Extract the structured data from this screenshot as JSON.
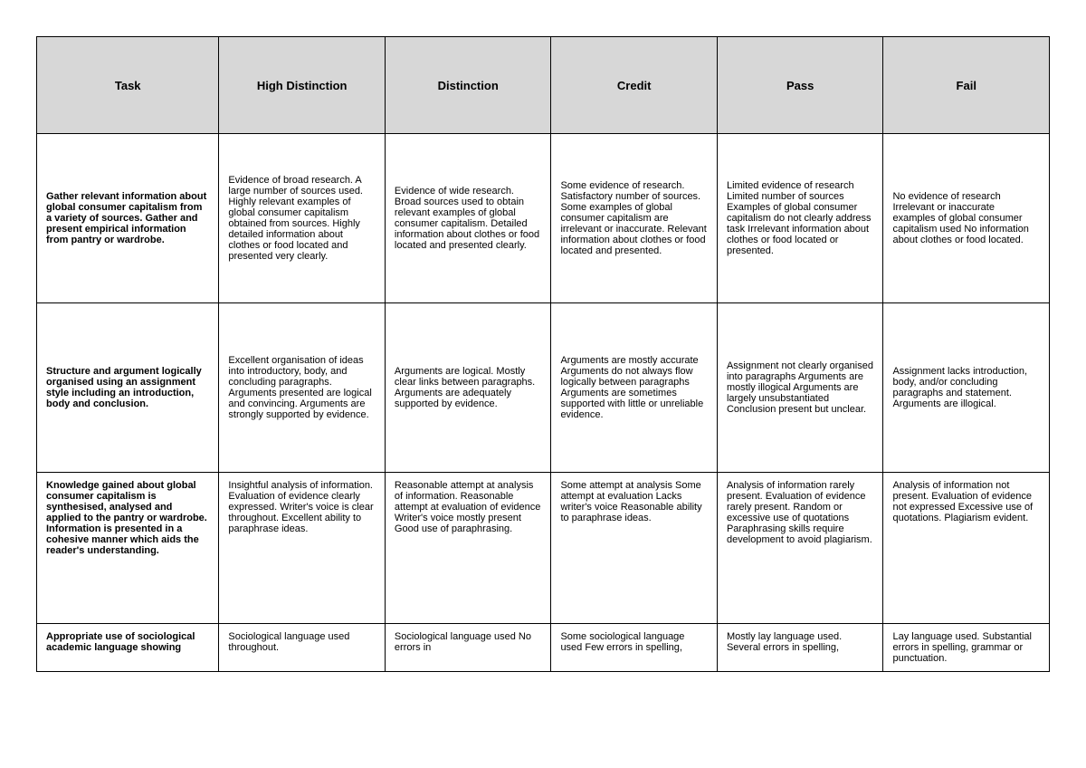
{
  "rubric": {
    "columns": [
      "Task",
      "High Distinction",
      "Distinction",
      "Credit",
      "Pass",
      "Fail"
    ],
    "rows": [
      {
        "task": "Gather relevant information about global consumer capitalism from a variety of sources. Gather and present empirical information from pantry or wardrobe.",
        "cells": [
          "Evidence of broad research. A large number of sources used. Highly relevant examples of global consumer capitalism obtained from sources. Highly detailed information about clothes or food located and presented very clearly.",
          "Evidence of wide research.\nBroad sources used to obtain\nrelevant examples of global consumer capitalism.\nDetailed information about clothes or food located and presented clearly.",
          "Some evidence of research. Satisfactory number of sources. Some examples of global consumer capitalism are irrelevant or inaccurate. Relevant information about clothes or food located and presented.",
          "Limited evidence of research Limited number of sources Examples of global consumer capitalism do not clearly address task Irrelevant information about clothes or food located or presented.",
          "No evidence of research\nIrrelevant or inaccurate examples of global consumer capitalism used\nNo information about clothes or food located."
        ]
      },
      {
        "task": "Structure and argument logically organised using an assignment style including an introduction, body and conclusion.",
        "cells": [
          "Excellent organisation of ideas into introductory, body, and concluding paragraphs. Arguments presented are logical and convincing. Arguments are strongly supported by evidence.",
          "Arguments are logical. Mostly clear links between paragraphs. Arguments are adequately supported by evidence.",
          "Arguments are mostly accurate Arguments do not always flow logically between paragraphs Arguments are sometimes supported with little or unreliable evidence.",
          "Assignment not clearly organised into paragraphs Arguments are mostly illogical Arguments are largely unsubstantiated Conclusion present but unclear.",
          "Assignment lacks introduction, body, and/or concluding paragraphs and statement. Arguments are illogical."
        ]
      },
      {
        "task": "Knowledge gained about global consumer capitalism is synthesised, analysed and applied to the pantry or wardrobe. Information is presented in a cohesive manner which aids the reader's understanding.",
        "cells": [
          "Insightful analysis of information. Evaluation of evidence clearly expressed. Writer's voice is clear throughout. Excellent ability to paraphrase ideas.",
          "Reasonable attempt at analysis of information. Reasonable attempt at evaluation of evidence Writer's voice mostly present Good use of paraphrasing.",
          "Some attempt at analysis Some attempt at evaluation Lacks writer's voice Reasonable ability to paraphrase ideas.",
          "Analysis of information rarely present.\nEvaluation of evidence rarely present.\nRandom or excessive use of quotations Paraphrasing skills require development to avoid plagiarism.",
          "Analysis of information not present. Evaluation of evidence not expressed Excessive use of quotations. Plagiarism evident."
        ]
      },
      {
        "task": "Appropriate use of sociological academic language showing",
        "cells": [
          "Sociological language used throughout.",
          "Sociological language used No errors in",
          "Some sociological language used Few errors in spelling,",
          "Mostly lay language used. Several errors in spelling,",
          "Lay language used. Substantial errors in spelling, grammar or punctuation."
        ]
      }
    ]
  }
}
